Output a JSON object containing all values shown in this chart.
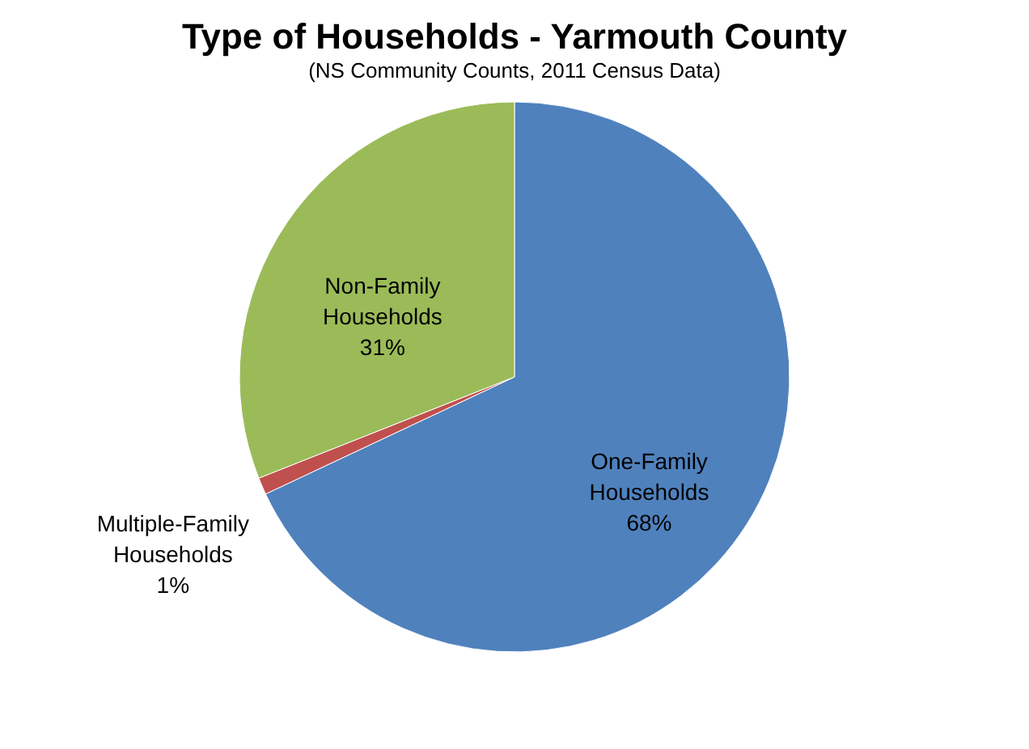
{
  "chart_data": {
    "type": "pie",
    "title": "Type of Households - Yarmouth County",
    "subtitle": "(NS Community Counts, 2011 Census Data)",
    "categories": [
      "One-Family Households",
      "Multiple-Family Households",
      "Non-Family Households"
    ],
    "values": [
      68,
      1,
      31
    ],
    "value_labels": [
      "68%",
      "1%",
      "31%"
    ],
    "colors": [
      "#4f81bd",
      "#c0504d",
      "#9bbb59"
    ]
  }
}
